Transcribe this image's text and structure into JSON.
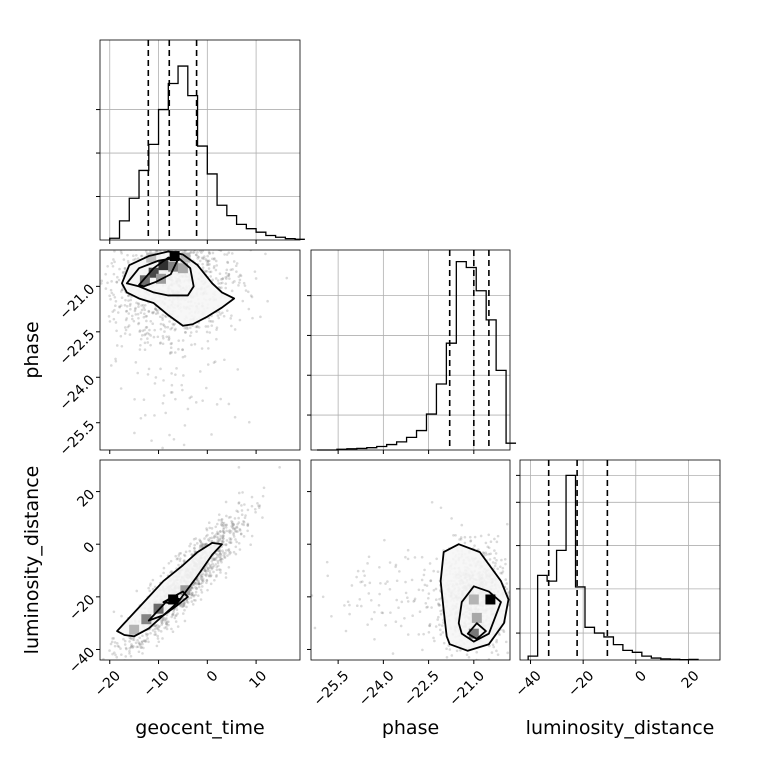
{
  "chart_data": [
    {
      "type": "histogram",
      "panel": "geocent_time",
      "xlim": [
        -22,
        19
      ],
      "bin_width": 2,
      "bin_edges_start": -20,
      "density": [
        0.01,
        0.11,
        0.24,
        0.4,
        0.55,
        0.75,
        0.9,
        1.0,
        0.83,
        0.54,
        0.38,
        0.2,
        0.14,
        0.09,
        0.065,
        0.045,
        0.026,
        0.016,
        0.008,
        0.004
      ],
      "quantiles": [
        -12.1,
        -7.8,
        -2.2
      ],
      "ylim": [
        0,
        1.15
      ],
      "y_gridlines": [
        0.25,
        0.5,
        0.75
      ]
    },
    {
      "type": "histogram",
      "panel": "phase",
      "xlim": [
        -26.4,
        -19.8
      ],
      "bin_width": 0.33,
      "bin_edges_start": -26.2,
      "density": [
        0,
        0,
        0.004,
        0.006,
        0.008,
        0.012,
        0.018,
        0.028,
        0.042,
        0.065,
        0.1,
        0.185,
        0.34,
        0.55,
        0.97,
        0.94,
        0.82,
        0.67,
        0.41,
        0.035
      ],
      "quantiles": [
        -21.8,
        -21.0,
        -20.5
      ],
      "ylim": [
        0,
        1.03
      ],
      "y_gridlines": [
        0.18,
        0.385,
        0.59,
        0.795
      ]
    },
    {
      "type": "histogram",
      "panel": "luminosity_distance",
      "xlim": [
        -44,
        32
      ],
      "bin_width": 3.6,
      "bin_edges_start": -40.9,
      "density": [
        0.02,
        0.44,
        0.41,
        0.57,
        0.96,
        0.38,
        0.17,
        0.14,
        0.12,
        0.08,
        0.05,
        0.04,
        0.02,
        0.01,
        0.006,
        0.004,
        0.002,
        0.003
      ],
      "quantiles": [
        -33.1,
        -22.3,
        -10.8
      ],
      "ylim": [
        0,
        1.04
      ],
      "y_gridlines": [
        0.14,
        0.37,
        0.595,
        0.82,
        0.96
      ]
    },
    {
      "type": "scatter",
      "panel": "geocent_time vs phase",
      "x_param": "geocent_time",
      "y_param": "phase",
      "xlim": [
        -22,
        19
      ],
      "ylim": [
        -26.4,
        -19.8
      ],
      "peak": [
        -6.7,
        -20.0
      ],
      "contours": [
        [
          [
            -17.5,
            -20.9
          ],
          [
            -16,
            -20.3
          ],
          [
            -12,
            -20.0
          ],
          [
            -8,
            -19.85
          ],
          [
            -5,
            -19.95
          ],
          [
            -2,
            -20.3
          ],
          [
            1,
            -20.9
          ],
          [
            3,
            -21.2
          ],
          [
            5.5,
            -21.4
          ],
          [
            3,
            -21.7
          ],
          [
            0,
            -22.0
          ],
          [
            -3,
            -22.25
          ],
          [
            -5,
            -22.3
          ],
          [
            -8,
            -21.95
          ],
          [
            -11,
            -21.55
          ],
          [
            -14,
            -21.4
          ],
          [
            -16.5,
            -21.2
          ]
        ],
        [
          [
            -16.5,
            -20.9
          ],
          [
            -14,
            -20.4
          ],
          [
            -10,
            -20.15
          ],
          [
            -6,
            -20.05
          ],
          [
            -3.5,
            -20.4
          ],
          [
            -2.8,
            -21.0
          ],
          [
            -4,
            -21.3
          ],
          [
            -8,
            -21.3
          ],
          [
            -11,
            -21.2
          ],
          [
            -14,
            -21.0
          ]
        ],
        [
          [
            -14,
            -20.95
          ],
          [
            -11,
            -20.4
          ],
          [
            -8,
            -20.05
          ],
          [
            -6,
            -20.1
          ],
          [
            -7.5,
            -20.6
          ],
          [
            -10.5,
            -20.85
          ],
          [
            -13,
            -21.0
          ]
        ]
      ],
      "density_cells": [
        {
          "x": -6.7,
          "y": -20.0,
          "level": 1.0
        },
        {
          "x": -9.0,
          "y": -20.3,
          "level": 0.8
        },
        {
          "x": -11.0,
          "y": -20.55,
          "level": 0.7
        },
        {
          "x": -12.8,
          "y": -20.8,
          "level": 0.55
        },
        {
          "x": -7.0,
          "y": -20.35,
          "level": 0.45
        },
        {
          "x": -5.0,
          "y": -20.4,
          "level": 0.3
        },
        {
          "x": -9.5,
          "y": -20.75,
          "level": 0.35
        },
        {
          "x": -4.5,
          "y": -20.05,
          "level": 0.25
        },
        {
          "x": -11.5,
          "y": -20.05,
          "level": 0.2
        }
      ],
      "cloud": {
        "cx": -7,
        "cy": -20.8,
        "sx": 6.5,
        "sy": 0.9,
        "n": 1300,
        "tail_y": -25.0
      }
    },
    {
      "type": "scatter",
      "panel": "geocent_time vs luminosity_distance",
      "x_param": "geocent_time",
      "y_param": "luminosity_distance",
      "xlim": [
        -22,
        19
      ],
      "ylim": [
        -44,
        32
      ],
      "peak": [
        -7.0,
        -21.0
      ],
      "contours": [
        [
          [
            -18.5,
            -33
          ],
          [
            -17,
            -34.5
          ],
          [
            -15,
            -35
          ],
          [
            -12,
            -32
          ],
          [
            -9,
            -27
          ],
          [
            -6,
            -22
          ],
          [
            -2,
            -12
          ],
          [
            1,
            -4
          ],
          [
            3,
            0
          ],
          [
            1,
            0.5
          ],
          [
            -2,
            -3
          ],
          [
            -5,
            -8
          ],
          [
            -9,
            -14
          ],
          [
            -12,
            -20
          ],
          [
            -15,
            -26
          ],
          [
            -17,
            -30
          ]
        ],
        [
          [
            -12,
            -29
          ],
          [
            -9.5,
            -24
          ],
          [
            -8,
            -21
          ],
          [
            -5,
            -18
          ],
          [
            -4,
            -20
          ],
          [
            -6,
            -23
          ],
          [
            -9,
            -27
          ]
        ],
        [
          [
            -9,
            -22
          ],
          [
            -7,
            -20
          ],
          [
            -5.5,
            -21
          ],
          [
            -7.5,
            -22.5
          ]
        ]
      ],
      "density_cells": [
        {
          "x": -7.0,
          "y": -21.0,
          "level": 1.0
        },
        {
          "x": -10.0,
          "y": -24.5,
          "level": 0.55
        },
        {
          "x": -12.5,
          "y": -28.5,
          "level": 0.45
        },
        {
          "x": -4.5,
          "y": -17.5,
          "level": 0.35
        },
        {
          "x": -15.0,
          "y": -32.5,
          "level": 0.25
        }
      ],
      "cloud": {
        "slope": 1.92,
        "intercept": -5.5,
        "xmean": -5,
        "xsd": 6,
        "resid_sd": 5.2,
        "n": 1300
      }
    },
    {
      "type": "scatter",
      "panel": "phase vs luminosity_distance",
      "x_param": "phase",
      "y_param": "luminosity_distance",
      "xlim": [
        -26.4,
        -19.8
      ],
      "ylim": [
        -44,
        32
      ],
      "peak": [
        -20.45,
        -21.0
      ],
      "contours": [
        [
          [
            -21.9,
            -35
          ],
          [
            -21.8,
            -38
          ],
          [
            -21.2,
            -40.5
          ],
          [
            -20.5,
            -38
          ],
          [
            -20.0,
            -30
          ],
          [
            -19.85,
            -21
          ],
          [
            -20.1,
            -14
          ],
          [
            -20.8,
            -3
          ],
          [
            -21.5,
            0
          ],
          [
            -22.0,
            -3
          ],
          [
            -22.1,
            -14
          ],
          [
            -22.0,
            -25
          ]
        ],
        [
          [
            -21.4,
            -34
          ],
          [
            -21.0,
            -37
          ],
          [
            -20.5,
            -34
          ],
          [
            -20.1,
            -22
          ],
          [
            -20.5,
            -18
          ],
          [
            -21.0,
            -16
          ],
          [
            -21.4,
            -22
          ],
          [
            -21.5,
            -30
          ]
        ],
        [
          [
            -21.2,
            -34
          ],
          [
            -20.9,
            -36
          ],
          [
            -20.6,
            -33
          ],
          [
            -20.9,
            -30
          ]
        ]
      ],
      "density_cells": [
        {
          "x": -20.45,
          "y": -21.0,
          "level": 1.0
        },
        {
          "x": -21.0,
          "y": -34.0,
          "level": 0.5
        },
        {
          "x": -20.9,
          "y": -28.0,
          "level": 0.3
        },
        {
          "x": -21.0,
          "y": -21.0,
          "level": 0.25
        }
      ],
      "cloud": {
        "cx": -21.0,
        "cy": -20,
        "sx": 0.55,
        "sy": 9.5,
        "n": 1300,
        "tail_x": -25.0
      }
    }
  ],
  "axes": {
    "geocent_time": {
      "label": "geocent_time",
      "tick_values": [
        -20,
        -10,
        0,
        10
      ],
      "tick_labels": [
        "−20",
        "−10",
        "0",
        "10"
      ]
    },
    "phase": {
      "label": "phase",
      "tick_values": [
        -25.5,
        -24.0,
        -22.5,
        -21.0
      ],
      "tick_labels": [
        "−25.5",
        "−24.0",
        "−22.5",
        "−21.0"
      ]
    },
    "luminosity_distance": {
      "label": "luminosity_distance",
      "tick_values": [
        -40,
        -20,
        0,
        20
      ],
      "tick_labels": [
        "−40",
        "−20",
        "0",
        "20"
      ]
    }
  },
  "style": {
    "line_color": "#000000",
    "grid_color": "#b0b0b0",
    "scatter_color": "#7a7a7a",
    "density_colormap": [
      "#f4f4f4",
      "#000000"
    ]
  }
}
